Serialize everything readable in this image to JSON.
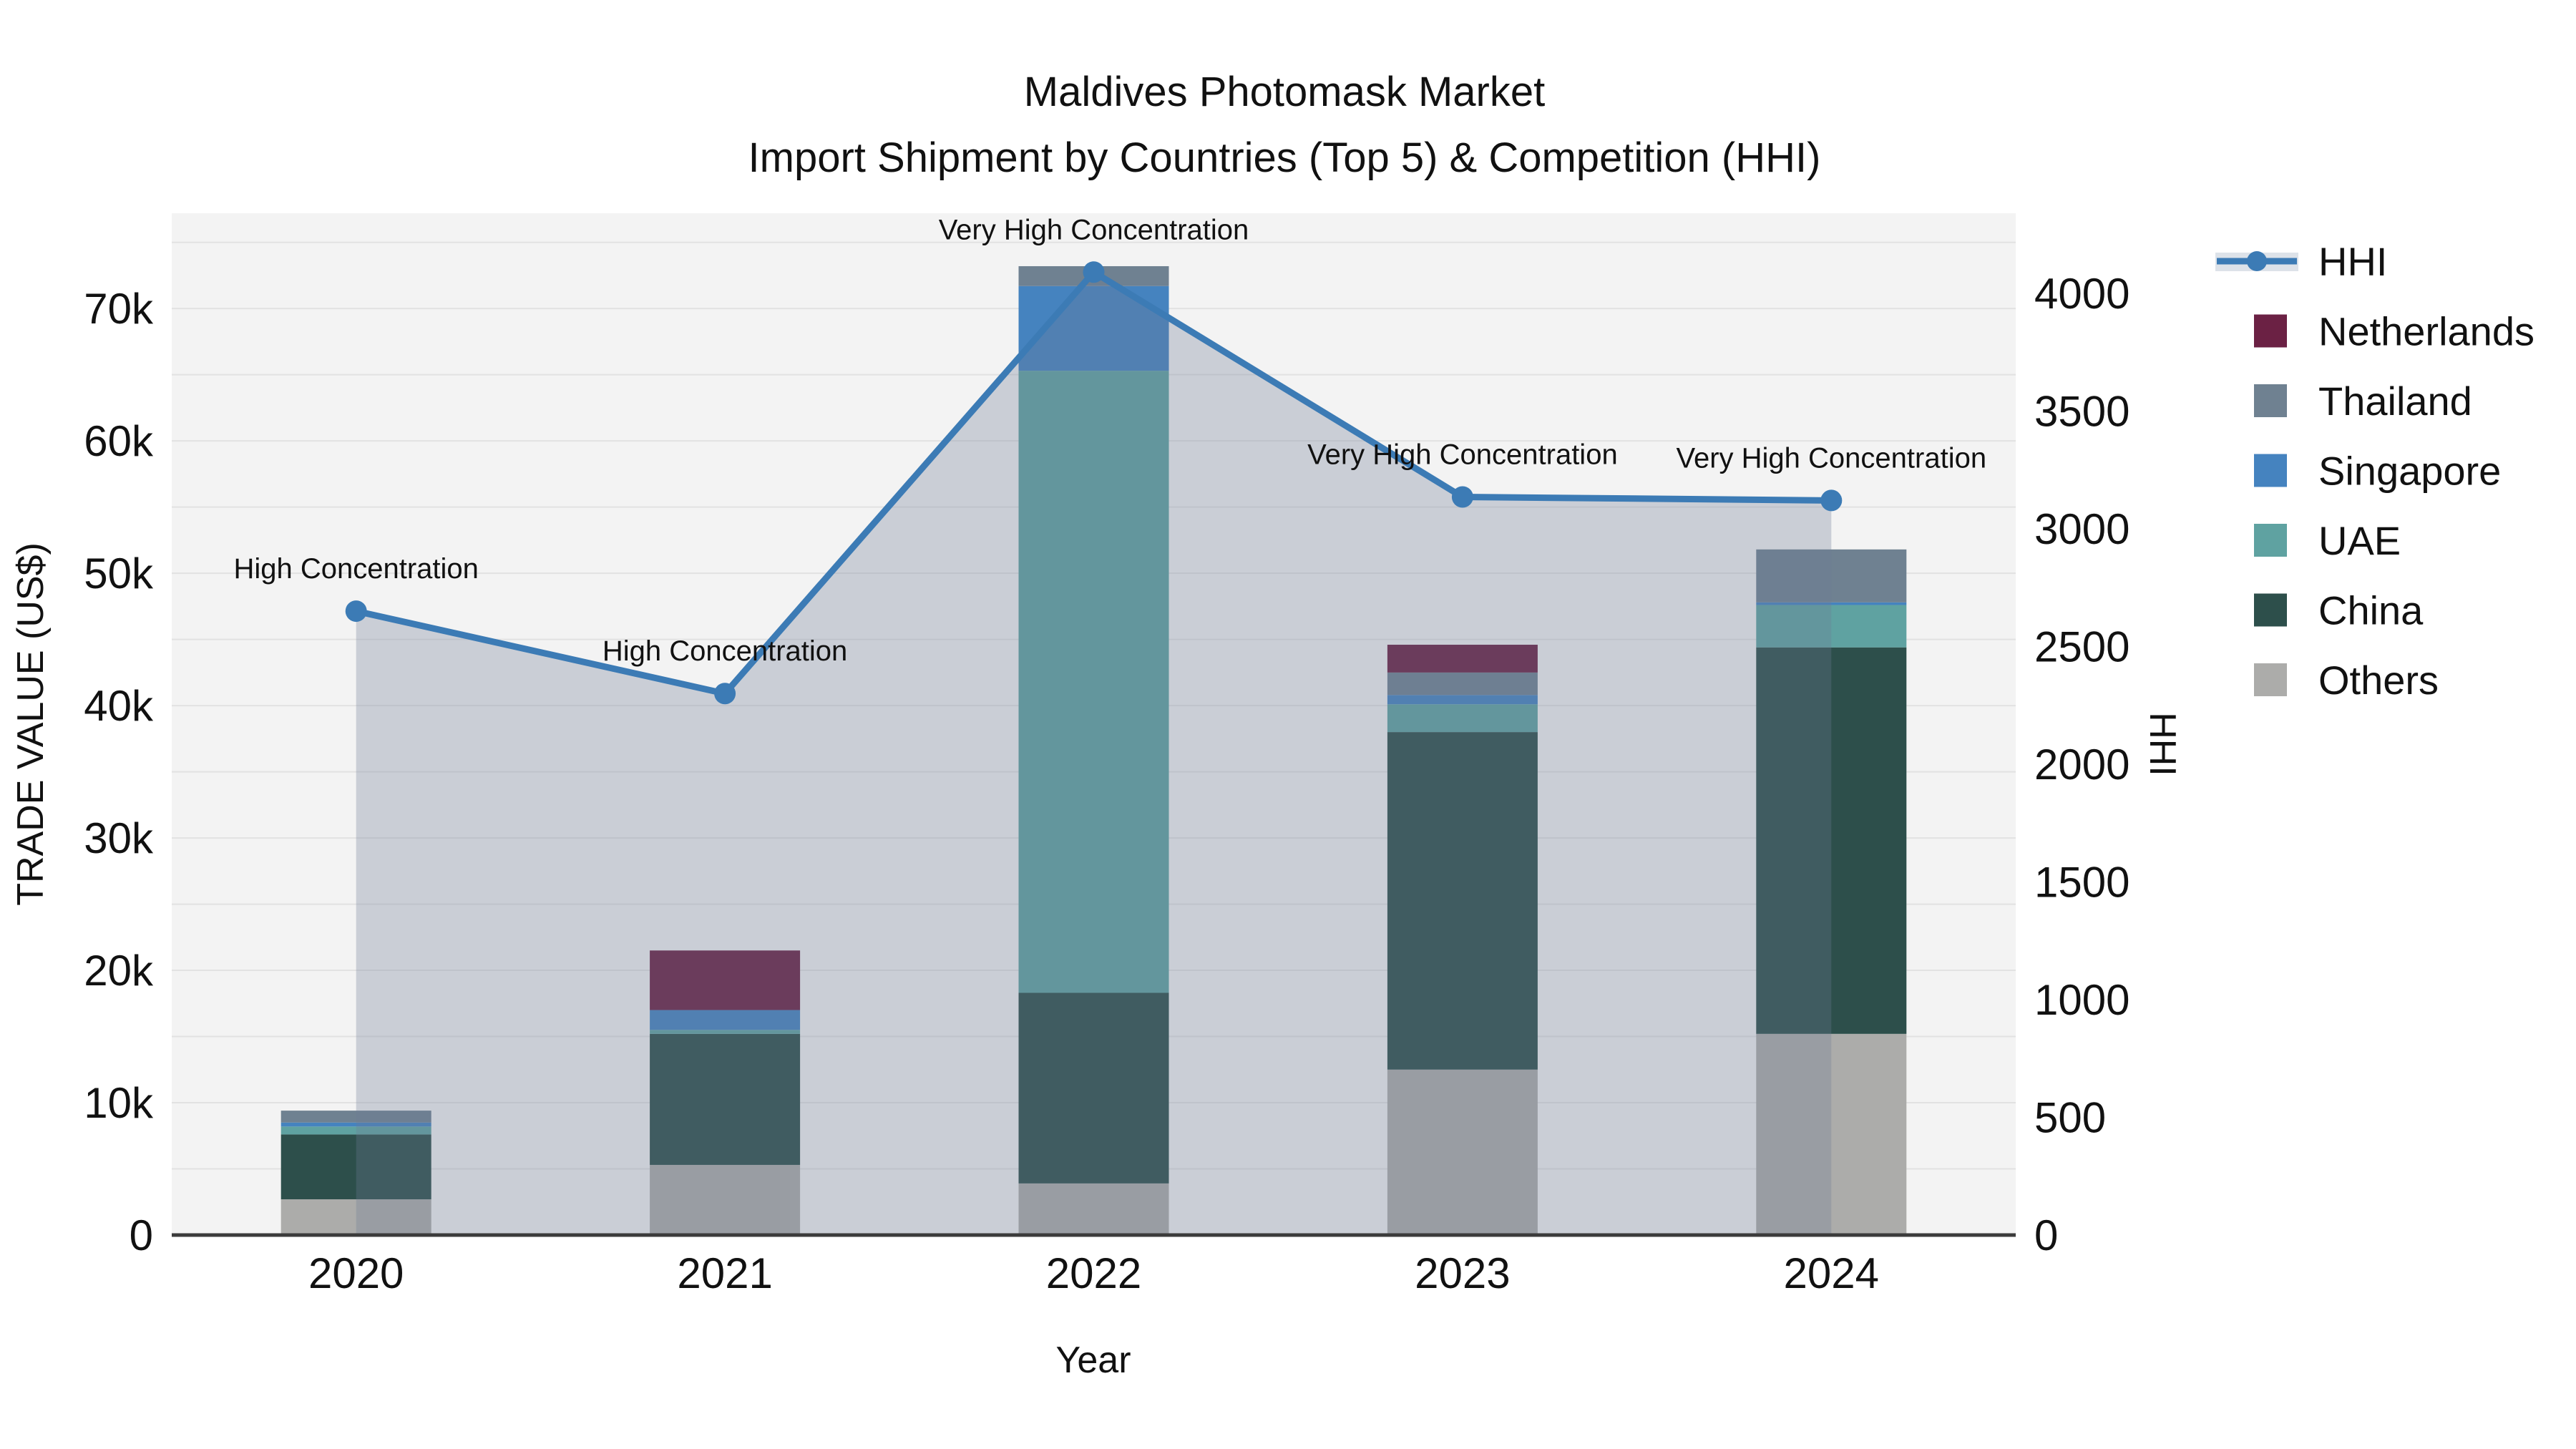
{
  "title": {
    "line1": "Maldives Photomask Market",
    "line2": "Import Shipment by Countries (Top 5) & Competition (HHI)"
  },
  "axes": {
    "x": {
      "title": "Year",
      "categories": [
        "2020",
        "2021",
        "2022",
        "2023",
        "2024"
      ]
    },
    "left": {
      "title": "TRADE VALUE (US$)",
      "tick_labels": [
        "0",
        "10k",
        "20k",
        "30k",
        "40k",
        "50k",
        "60k",
        "70k"
      ],
      "tick_values": [
        0,
        10000,
        20000,
        30000,
        40000,
        50000,
        60000,
        70000
      ],
      "max": 77200
    },
    "right": {
      "title": "HHI",
      "tick_labels": [
        "0",
        "500",
        "1000",
        "1500",
        "2000",
        "2500",
        "3000",
        "3500",
        "4000"
      ],
      "tick_values": [
        0,
        500,
        1000,
        1500,
        2000,
        2500,
        3000,
        3500,
        4000
      ],
      "max": 4340
    }
  },
  "legend": {
    "items": [
      {
        "label": "HHI",
        "type": "line",
        "color": "#3C7BB5"
      },
      {
        "label": "Netherlands",
        "type": "swatch",
        "color": "#6B2144"
      },
      {
        "label": "Thailand",
        "type": "swatch",
        "color": "#6F8191"
      },
      {
        "label": "Singapore",
        "type": "swatch",
        "color": "#4583BF"
      },
      {
        "label": "UAE",
        "type": "swatch",
        "color": "#5FA2A1"
      },
      {
        "label": "China",
        "type": "swatch",
        "color": "#2D4F4B"
      },
      {
        "label": "Others",
        "type": "swatch",
        "color": "#ACACAA"
      }
    ]
  },
  "chart_data": {
    "type": "bar",
    "subtype": "stacked-bar-with-line",
    "title": "Maldives Photomask Market — Import Shipment by Countries (Top 5) & Competition (HHI)",
    "xlabel": "Year",
    "ylabel": "TRADE VALUE (US$)",
    "ylabel_right": "HHI",
    "categories": [
      "2020",
      "2021",
      "2022",
      "2023",
      "2024"
    ],
    "ylim_left": [
      0,
      77200
    ],
    "ylim_right": [
      0,
      4340
    ],
    "grid": true,
    "legend_position": "right",
    "series": [
      {
        "name": "Others",
        "type": "bar",
        "axis": "left",
        "color": "#ACACAA",
        "values": [
          2700,
          5300,
          3900,
          12500,
          15200
        ]
      },
      {
        "name": "China",
        "type": "bar",
        "axis": "left",
        "color": "#2D4F4B",
        "values": [
          4900,
          9900,
          14400,
          25500,
          29200
        ]
      },
      {
        "name": "UAE",
        "type": "bar",
        "axis": "left",
        "color": "#5FA2A1",
        "values": [
          600,
          300,
          47000,
          2100,
          3200
        ]
      },
      {
        "name": "Singapore",
        "type": "bar",
        "axis": "left",
        "color": "#4583BF",
        "values": [
          300,
          1500,
          6400,
          700,
          200
        ]
      },
      {
        "name": "Thailand",
        "type": "bar",
        "axis": "left",
        "color": "#6F8191",
        "values": [
          900,
          0,
          1500,
          1700,
          4000
        ]
      },
      {
        "name": "Netherlands",
        "type": "bar",
        "axis": "left",
        "color": "#6B2144",
        "values": [
          0,
          4500,
          0,
          2100,
          0
        ]
      },
      {
        "name": "HHI",
        "type": "line",
        "axis": "right",
        "color": "#3C7BB5",
        "fill": "rgba(108,124,150,0.30)",
        "values": [
          2650,
          2300,
          4090,
          3135,
          3120
        ]
      }
    ],
    "bar_totals": [
      9400,
      21500,
      73200,
      44600,
      51800
    ],
    "annotations": [
      {
        "year": "2020",
        "text": "High Concentration"
      },
      {
        "year": "2021",
        "text": "High Concentration"
      },
      {
        "year": "2022",
        "text": "Very High Concentration"
      },
      {
        "year": "2023",
        "text": "Very High Concentration"
      },
      {
        "year": "2024",
        "text": "Very High Concentration"
      }
    ]
  },
  "colors": {
    "hhi_line": "#3C7BB5",
    "area_fill": "rgba(108,124,150,0.30)",
    "plot_bg": "#F3F3F3",
    "gridline": "#E2E2E2",
    "axis_line": "#3B3B3B",
    "text": "#111111",
    "legend_fill_band": "#DDE2E9"
  }
}
